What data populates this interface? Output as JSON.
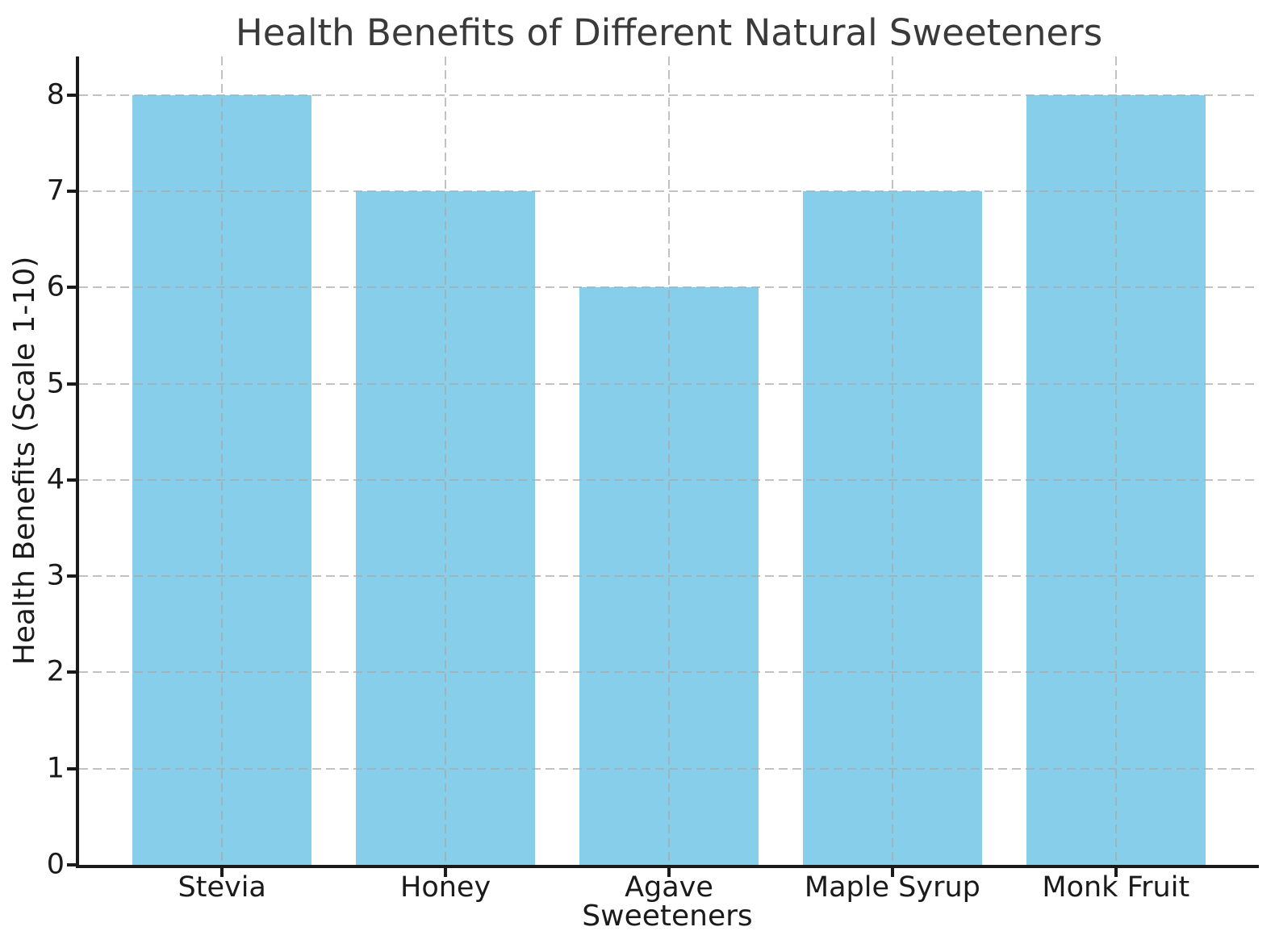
{
  "chart_data": {
    "type": "bar",
    "title": "Health Benefits of Different Natural Sweeteners",
    "xlabel": "Sweeteners",
    "ylabel": "Health Benefits (Scale 1-10)",
    "categories": [
      "Stevia",
      "Honey",
      "Agave",
      "Maple Syrup",
      "Monk Fruit"
    ],
    "values": [
      8,
      7,
      6,
      7,
      8
    ],
    "yticks": [
      0,
      1,
      2,
      3,
      4,
      5,
      6,
      7,
      8
    ],
    "ylim": [
      0,
      8.4
    ],
    "grid": "on",
    "grid_style": "dashed",
    "legend": "none",
    "colors": {
      "bar": "#87CEEB",
      "grid": "#aaaaaa",
      "axis": "#1a1a1a",
      "tick_label": "#1a1a1a",
      "title": "#3a3a3a",
      "background": "#ffffff"
    }
  }
}
